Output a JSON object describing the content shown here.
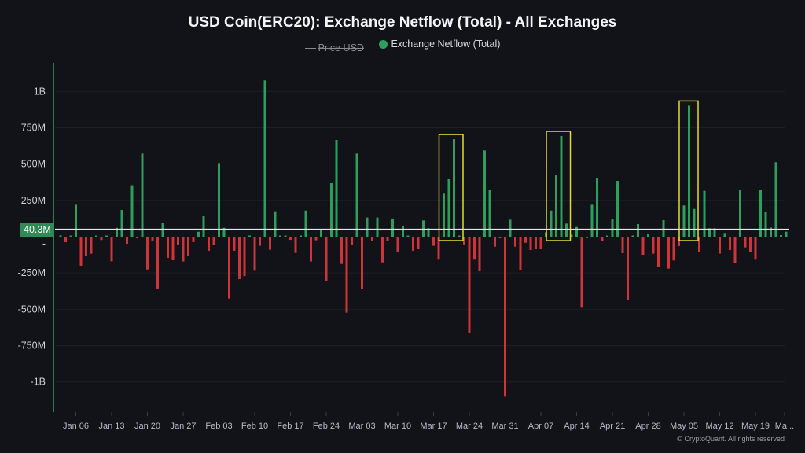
{
  "chart_data": {
    "type": "bar",
    "title": "USD Coin(ERC20): Exchange Netflow (Total) - All Exchanges",
    "legend": [
      {
        "label": "Price USD",
        "hidden": true,
        "color": "#8a8a92"
      },
      {
        "label": "Exchange Netflow (Total)",
        "hidden": false,
        "color": "#2f9e5c"
      }
    ],
    "legend_position": "top-center",
    "xlabel": "",
    "ylabel": "",
    "unit": "USD (millions)",
    "ylim": [
      -1200,
      1200
    ],
    "y_ticks": [
      {
        "value": 1000,
        "label": "1B"
      },
      {
        "value": 750,
        "label": "750M"
      },
      {
        "value": 500,
        "label": "500M"
      },
      {
        "value": 250,
        "label": "250M"
      },
      {
        "value": 0,
        "label": "0"
      },
      {
        "value": -250,
        "label": "-250M"
      },
      {
        "value": -500,
        "label": "-500M"
      },
      {
        "value": -750,
        "label": "-750M"
      },
      {
        "value": -1000,
        "label": "-1B"
      }
    ],
    "x_tick_labels": [
      "Jan 06",
      "Jan 13",
      "Jan 20",
      "Jan 27",
      "Feb 03",
      "Feb 10",
      "Feb 17",
      "Feb 24",
      "Mar 03",
      "Mar 10",
      "Mar 17",
      "Mar 24",
      "Mar 31",
      "Apr 07",
      "Apr 14",
      "Apr 21",
      "Apr 28",
      "May 05",
      "May 12",
      "May 19",
      "Ma..."
    ],
    "first_tick_day_index": 3,
    "tick_every_days": 7,
    "grid": true,
    "positive_color": "#2f9e5c",
    "negative_color": "#d13438",
    "highlight_color": "#e3dc2b",
    "values": [
      9,
      -38,
      4,
      220,
      -200,
      -132,
      -117,
      1,
      -23,
      2,
      -170,
      61,
      184,
      -49,
      354,
      -11,
      572,
      -226,
      -27,
      -357,
      94,
      -146,
      -162,
      -56,
      -171,
      -134,
      -38,
      34,
      141,
      -97,
      -56,
      507,
      61,
      -426,
      -97,
      -292,
      -271,
      3,
      -229,
      -63,
      1076,
      -90,
      175,
      7,
      7,
      -22,
      -112,
      4,
      180,
      -171,
      -25,
      54,
      -303,
      368,
      666,
      -188,
      -523,
      -56,
      572,
      -361,
      132,
      -27,
      132,
      -177,
      -27,
      125,
      -108,
      72,
      1,
      -97,
      -83,
      112,
      58,
      -63,
      -153,
      296,
      401,
      671,
      7,
      -56,
      -664,
      -153,
      -236,
      594,
      321,
      -69,
      -5,
      -1101,
      117,
      -69,
      -227,
      -42,
      -92,
      -81,
      -85,
      30,
      180,
      422,
      693,
      90,
      13,
      67,
      -484,
      -11,
      220,
      406,
      -32,
      1,
      119,
      384,
      -114,
      -433,
      4,
      87,
      -125,
      22,
      -117,
      -208,
      114,
      -220,
      -164,
      -65,
      215,
      902,
      191,
      -108,
      316,
      58,
      58,
      -117,
      25,
      -92,
      -182,
      321,
      -74,
      -108,
      -153,
      321,
      173,
      63,
      513,
      11,
      34
    ],
    "highlights": [
      {
        "start_index": 75,
        "end_index": 78
      },
      {
        "start_index": 96,
        "end_index": 99
      },
      {
        "start_index": 122,
        "end_index": 124
      }
    ],
    "current_value": 40.3,
    "current_value_label": "40.3M"
  },
  "footer": {
    "copyright": "© CryptoQuant. All rights reserved"
  }
}
